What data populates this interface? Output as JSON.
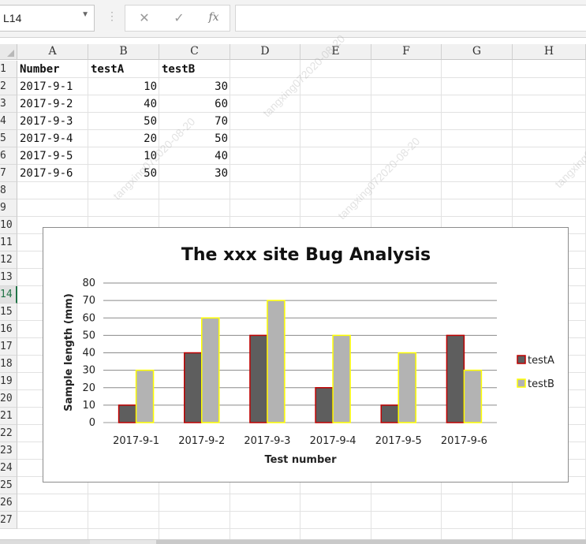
{
  "formula_bar": {
    "name_box": "L14",
    "cancel_icon": "✕",
    "enter_icon": "✓",
    "function_icon": "fx",
    "formula": ""
  },
  "columns": [
    "A",
    "B",
    "C",
    "D",
    "E",
    "F",
    "G",
    "H"
  ],
  "rows": [
    "1",
    "2",
    "3",
    "4",
    "5",
    "6",
    "7",
    "8",
    "9",
    "10",
    "11",
    "12",
    "13",
    "14",
    "15",
    "16",
    "17",
    "18",
    "19",
    "20",
    "21",
    "22",
    "23",
    "24",
    "25",
    "26",
    "27"
  ],
  "active_row": "14",
  "sheet": {
    "headers": [
      "Number",
      "testA",
      "testB"
    ],
    "data": [
      [
        "2017-9-1",
        "10",
        "30"
      ],
      [
        "2017-9-2",
        "40",
        "60"
      ],
      [
        "2017-9-3",
        "50",
        "70"
      ],
      [
        "2017-9-4",
        "20",
        "50"
      ],
      [
        "2017-9-5",
        "10",
        "40"
      ],
      [
        "2017-9-6",
        "50",
        "30"
      ]
    ]
  },
  "watermark": "tangxing072020-08-20",
  "colors": {
    "testA_fill": "#5e5e5e",
    "testA_border": "#c00000",
    "testB_fill": "#b3b3b3",
    "testB_border": "#ffff00",
    "active_green": "#217346"
  },
  "chart_data": {
    "type": "bar",
    "title": "The xxx site Bug Analysis",
    "xlabel": "Test number",
    "ylabel": "Sample length (mm)",
    "categories": [
      "2017-9-1",
      "2017-9-2",
      "2017-9-3",
      "2017-9-4",
      "2017-9-5",
      "2017-9-6"
    ],
    "series": [
      {
        "name": "testA",
        "values": [
          10,
          40,
          50,
          20,
          10,
          50
        ]
      },
      {
        "name": "testB",
        "values": [
          30,
          60,
          70,
          50,
          40,
          30
        ]
      }
    ],
    "ylim": [
      0,
      80
    ],
    "yticks": [
      "0",
      "10",
      "20",
      "30",
      "40",
      "50",
      "60",
      "70",
      "80"
    ],
    "grid": true,
    "legend": "right"
  }
}
